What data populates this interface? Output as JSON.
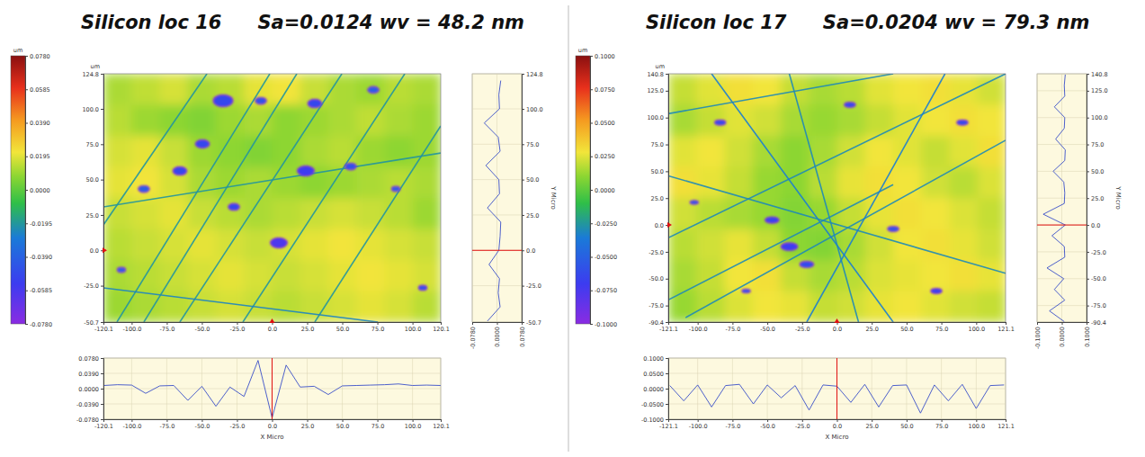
{
  "chart_data": [
    {
      "type": "heatmap",
      "title": "Silicon loc 16",
      "subtitle": "Sa=0.0124 wv = 48.2 nm",
      "x_label": "X Micro",
      "y_label": "Y Micro",
      "unit": "um",
      "xlim": [
        -120.1,
        120.1
      ],
      "xticks": [
        {
          "value": -120.1,
          "label": "-120.1"
        },
        {
          "value": -100,
          "label": "-100.0"
        },
        {
          "value": -75,
          "label": "-75.0"
        },
        {
          "value": -50,
          "label": "-50.0"
        },
        {
          "value": -25,
          "label": "-25.0"
        },
        {
          "value": 0,
          "label": "0.0"
        },
        {
          "value": 25,
          "label": "25.0"
        },
        {
          "value": 50,
          "label": "50.0"
        },
        {
          "value": 75,
          "label": "75.0"
        },
        {
          "value": 100,
          "label": "100.0"
        },
        {
          "value": 120.1,
          "label": "120.1"
        }
      ],
      "ylim": [
        -50.7,
        124.8
      ],
      "yticks": [
        {
          "value": -50.7,
          "label": "-50.7"
        },
        {
          "value": -25,
          "label": "-25.0"
        },
        {
          "value": 0,
          "label": "0.0"
        },
        {
          "value": 25,
          "label": "25.0"
        },
        {
          "value": 50,
          "label": "50.0"
        },
        {
          "value": 75,
          "label": "75.0"
        },
        {
          "value": 100,
          "label": "100.0"
        },
        {
          "value": 124.8,
          "label": "124.8"
        }
      ],
      "colorbar": {
        "range": [
          -0.078,
          0.078
        ],
        "ticks": [
          {
            "value": -0.078,
            "label": "-0.0780"
          },
          {
            "value": -0.0585,
            "label": "-0.0585"
          },
          {
            "value": -0.039,
            "label": "-0.0390"
          },
          {
            "value": -0.0195,
            "label": "-0.0195"
          },
          {
            "value": 0,
            "label": "0.0000"
          },
          {
            "value": 0.0195,
            "label": "0.0195"
          },
          {
            "value": 0.039,
            "label": "0.0390"
          },
          {
            "value": 0.0585,
            "label": "0.0585"
          },
          {
            "value": 0.078,
            "label": "0.0780"
          }
        ]
      },
      "cells": [
        [
          0.012,
          0.015,
          0.018,
          0.012,
          0.014,
          0.02,
          0.022,
          0.016,
          0.012,
          0.01,
          0.014,
          0.012
        ],
        [
          0.014,
          0.01,
          0.008,
          0.006,
          0.01,
          0.012,
          0.008,
          0.01,
          0.012,
          0.015,
          0.012,
          0.01
        ],
        [
          0.018,
          0.02,
          0.016,
          0.01,
          0.008,
          0.006,
          0.008,
          0.012,
          0.014,
          0.01,
          0.008,
          0.01
        ],
        [
          0.02,
          0.022,
          0.018,
          0.012,
          0.01,
          0.012,
          0.01,
          0.008,
          0.01,
          0.012,
          0.014,
          0.012
        ],
        [
          0.016,
          0.018,
          0.02,
          0.016,
          0.014,
          0.012,
          0.014,
          0.016,
          0.018,
          0.016,
          0.014,
          0.01
        ],
        [
          0.014,
          0.016,
          0.018,
          0.02,
          0.018,
          0.016,
          0.018,
          0.02,
          0.022,
          0.02,
          0.018,
          0.016
        ],
        [
          0.012,
          0.014,
          0.016,
          0.018,
          0.02,
          0.018,
          0.016,
          0.018,
          0.02,
          0.022,
          0.02,
          0.018
        ],
        [
          0.01,
          0.012,
          0.014,
          0.016,
          0.018,
          0.016,
          0.014,
          0.016,
          0.018,
          0.02,
          0.018,
          0.014
        ]
      ],
      "scratches": [
        {
          "x": [
            -110.5,
            -1.6
          ],
          "y": [
            -50.7,
            124.8
          ],
          "value": -0.02
        },
        {
          "x": [
            -65.7,
            49.7
          ],
          "y": [
            -50.7,
            124.8
          ],
          "value": -0.02
        },
        {
          "x": [
            -20.8,
            94.5
          ],
          "y": [
            -50.7,
            124.8
          ],
          "value": -0.02
        },
        {
          "x": [
            30.4,
            120.1
          ],
          "y": [
            -50.7,
            87.9
          ],
          "value": -0.02
        },
        {
          "x": [
            -120.1,
            -46.4
          ],
          "y": [
            17.97,
            124.8
          ],
          "value": -0.02
        },
        {
          "x": [
            -120.1,
            75.3
          ],
          "y": [
            -26.5,
            -50.7
          ],
          "value": -0.025
        },
        {
          "x": [
            -120.1,
            120.1
          ],
          "y": [
            30.7,
            68.8
          ],
          "value": -0.02
        },
        {
          "x": [
            -91.3,
            17.6
          ],
          "y": [
            -50.7,
            124.8
          ],
          "value": -0.02
        }
      ],
      "pits": [
        {
          "x": -34.9,
          "y": 105.7,
          "size": 7,
          "value": -0.05
        },
        {
          "x": -8.0,
          "y": 105.7,
          "size": 4,
          "value": -0.045
        },
        {
          "x": 30.4,
          "y": 103.8,
          "size": 5,
          "value": -0.05
        },
        {
          "x": 72.1,
          "y": 113.4,
          "size": 4,
          "value": -0.04
        },
        {
          "x": -65.7,
          "y": 56.1,
          "size": 5,
          "value": -0.05
        },
        {
          "x": 24.0,
          "y": 56.1,
          "size": 6,
          "value": -0.055
        },
        {
          "x": 56.0,
          "y": 59.3,
          "size": 4,
          "value": -0.045
        },
        {
          "x": -91.3,
          "y": 43.4,
          "size": 4,
          "value": -0.04
        },
        {
          "x": 4.8,
          "y": 5.3,
          "size": 6,
          "value": -0.06
        },
        {
          "x": 88.1,
          "y": 43.4,
          "size": 3,
          "value": -0.04
        },
        {
          "x": -107.3,
          "y": -13.8,
          "size": 3,
          "value": -0.04
        },
        {
          "x": 107.3,
          "y": -26.5,
          "size": 3,
          "value": -0.045
        },
        {
          "x": -27.2,
          "y": 30.7,
          "size": 4,
          "value": -0.05
        },
        {
          "x": -49.6,
          "y": 75.2,
          "size": 5,
          "value": -0.05
        }
      ],
      "cursor": {
        "x": 0,
        "y": 0
      },
      "x_profile": {
        "x": [
          -120,
          -110,
          -100,
          -90,
          -80,
          -70,
          -60,
          -50,
          -40,
          -30,
          -20,
          -10,
          0,
          10,
          20,
          30,
          40,
          50,
          60,
          70,
          80,
          90,
          100,
          110,
          120
        ],
        "values": [
          0.008,
          0.01,
          0.009,
          -0.012,
          0.007,
          0.008,
          -0.03,
          0.006,
          -0.045,
          0.004,
          -0.02,
          0.072,
          -0.075,
          0.06,
          0.004,
          0.006,
          -0.015,
          0.007,
          0.008,
          0.009,
          0.01,
          0.012,
          0.008,
          0.009,
          0.008
        ],
        "ylim": [
          -0.078,
          0.078
        ],
        "yticks": [
          {
            "value": -0.078,
            "label": "-0.0780"
          },
          {
            "value": -0.039,
            "label": "-0.0390"
          },
          {
            "value": 0,
            "label": "0.0000"
          },
          {
            "value": 0.039,
            "label": "0.0390"
          },
          {
            "value": 0.078,
            "label": "0.0780"
          }
        ]
      },
      "y_profile": {
        "y": [
          -50,
          -40,
          -30,
          -20,
          -10,
          0,
          10,
          20,
          30,
          40,
          50,
          60,
          70,
          80,
          90,
          100,
          110,
          120
        ],
        "values": [
          -0.03,
          0.01,
          0.004,
          0.008,
          -0.025,
          0.006,
          0.01,
          0.012,
          -0.03,
          0.008,
          0.006,
          -0.035,
          0.01,
          0.004,
          -0.04,
          0.008,
          0.006,
          0.012
        ],
        "xlim": [
          -0.078,
          0.078
        ],
        "xticks": [
          {
            "value": -0.078,
            "label": "-0.0780"
          },
          {
            "value": 0,
            "label": "0.0000"
          },
          {
            "value": 0.078,
            "label": "0.0780"
          }
        ]
      }
    },
    {
      "type": "heatmap",
      "title": "Silicon loc 17",
      "subtitle": "Sa=0.0204 wv = 79.3 nm",
      "x_label": "X Micro",
      "y_label": "Y Micro",
      "unit": "um",
      "xlim": [
        -121.1,
        121.1
      ],
      "xticks": [
        {
          "value": -121.1,
          "label": "-121.1"
        },
        {
          "value": -100,
          "label": "-100.0"
        },
        {
          "value": -75,
          "label": "-75.0"
        },
        {
          "value": -50,
          "label": "-50.0"
        },
        {
          "value": -25,
          "label": "-25.0"
        },
        {
          "value": 0,
          "label": "0.0"
        },
        {
          "value": 25,
          "label": "25.0"
        },
        {
          "value": 50,
          "label": "50.0"
        },
        {
          "value": 75,
          "label": "75.0"
        },
        {
          "value": 100,
          "label": "100.0"
        },
        {
          "value": 121.1,
          "label": "121.1"
        }
      ],
      "ylim": [
        -90.4,
        140.8
      ],
      "yticks": [
        {
          "value": -90.4,
          "label": "-90.4"
        },
        {
          "value": -75,
          "label": "-75.0"
        },
        {
          "value": -50,
          "label": "-50.0"
        },
        {
          "value": -25,
          "label": "-25.0"
        },
        {
          "value": 0,
          "label": "0.0"
        },
        {
          "value": 25,
          "label": "25.0"
        },
        {
          "value": 50,
          "label": "50.0"
        },
        {
          "value": 75,
          "label": "75.0"
        },
        {
          "value": 100,
          "label": "100.0"
        },
        {
          "value": 125,
          "label": "125.0"
        },
        {
          "value": 140.8,
          "label": "140.8"
        }
      ],
      "colorbar": {
        "range": [
          -0.1,
          0.1
        ],
        "ticks": [
          {
            "value": -0.1,
            "label": "-0.1000"
          },
          {
            "value": -0.075,
            "label": "-0.0750"
          },
          {
            "value": -0.05,
            "label": "-0.0500"
          },
          {
            "value": -0.025,
            "label": "-0.0250"
          },
          {
            "value": 0,
            "label": "0.0000"
          },
          {
            "value": 0.025,
            "label": "0.0250"
          },
          {
            "value": 0.05,
            "label": "0.0500"
          },
          {
            "value": 0.075,
            "label": "0.0750"
          },
          {
            "value": 0.1,
            "label": "0.1000"
          }
        ]
      },
      "cells": [
        [
          0.02,
          0.025,
          0.03,
          0.028,
          0.02,
          0.015,
          0.018,
          0.025,
          0.028,
          0.03,
          0.026,
          0.022
        ],
        [
          0.015,
          0.02,
          0.025,
          0.022,
          0.015,
          0.012,
          0.015,
          0.02,
          0.025,
          0.028,
          0.03,
          0.028
        ],
        [
          0.025,
          0.028,
          0.022,
          0.015,
          0.01,
          0.015,
          0.022,
          0.028,
          0.025,
          0.02,
          0.025,
          0.03
        ],
        [
          0.03,
          0.026,
          0.02,
          0.012,
          0.01,
          0.018,
          0.026,
          0.03,
          0.028,
          0.022,
          0.018,
          0.024
        ],
        [
          0.022,
          0.018,
          0.015,
          0.012,
          0.008,
          0.012,
          0.02,
          0.026,
          0.03,
          0.028,
          0.024,
          0.02
        ],
        [
          0.018,
          0.022,
          0.026,
          0.02,
          0.01,
          0.008,
          0.015,
          0.022,
          0.028,
          0.03,
          0.026,
          0.022
        ],
        [
          0.015,
          0.02,
          0.028,
          0.03,
          0.02,
          0.015,
          0.018,
          0.024,
          0.026,
          0.028,
          0.03,
          0.026
        ],
        [
          0.012,
          0.018,
          0.024,
          0.028,
          0.026,
          0.02,
          0.022,
          0.026,
          0.028,
          0.025,
          0.022,
          0.02
        ]
      ],
      "scratches": [
        {
          "x": [
            -108.7,
            121.1
          ],
          "y": [
            -86.3,
            78.9
          ],
          "value": -0.03
        },
        {
          "x": [
            -121.1,
            121.1
          ],
          "y": [
            -11.96,
            140.8
          ],
          "value": -0.03
        },
        {
          "x": [
            -90.0,
            40.4
          ],
          "y": [
            140.8,
            -90.4
          ],
          "value": -0.035
        },
        {
          "x": [
            -121.1,
            40.4
          ],
          "y": [
            -69.8,
            37.6
          ],
          "value": -0.03
        },
        {
          "x": [
            -34.2,
            15.5
          ],
          "y": [
            140.8,
            -90.4
          ],
          "value": -0.03
        },
        {
          "x": [
            -121.1,
            121.1
          ],
          "y": [
            45.8,
            -45.0
          ],
          "value": -0.03
        },
        {
          "x": [
            -21.7,
            77.6
          ],
          "y": [
            -90.4,
            140.8
          ],
          "value": -0.035
        },
        {
          "x": [
            -121.1,
            40.4
          ],
          "y": [
            103.6,
            140.8
          ],
          "value": -0.03
        }
      ],
      "pits": [
        {
          "x": -34.2,
          "y": -20.2,
          "size": 6,
          "value": -0.07
        },
        {
          "x": -46.6,
          "y": 4.6,
          "size": 5,
          "value": -0.065
        },
        {
          "x": -21.7,
          "y": -36.7,
          "size": 5,
          "value": -0.06
        },
        {
          "x": -83.8,
          "y": 95.4,
          "size": 4,
          "value": -0.06
        },
        {
          "x": 40.4,
          "y": -3.7,
          "size": 4,
          "value": -0.055
        },
        {
          "x": 90.1,
          "y": 95.4,
          "size": 4,
          "value": -0.06
        },
        {
          "x": -102.5,
          "y": 21.1,
          "size": 3,
          "value": -0.055
        },
        {
          "x": 9.3,
          "y": 111.9,
          "size": 4,
          "value": -0.06
        },
        {
          "x": 71.4,
          "y": -61.5,
          "size": 4,
          "value": -0.065
        },
        {
          "x": -65.2,
          "y": -61.5,
          "size": 3,
          "value": -0.055
        }
      ],
      "cursor": {
        "x": 0,
        "y": 0
      },
      "x_profile": {
        "x": [
          -120,
          -110,
          -100,
          -90,
          -80,
          -70,
          -60,
          -50,
          -40,
          -30,
          -20,
          -10,
          0,
          10,
          20,
          30,
          40,
          50,
          60,
          70,
          80,
          90,
          100,
          110,
          120
        ],
        "values": [
          0.01,
          -0.04,
          0.012,
          -0.06,
          0.01,
          0.014,
          -0.05,
          0.012,
          -0.03,
          0.01,
          -0.07,
          0.012,
          0.008,
          -0.045,
          0.014,
          -0.06,
          0.01,
          0.012,
          -0.08,
          0.012,
          -0.04,
          0.014,
          -0.065,
          0.01,
          0.012
        ],
        "ylim": [
          -0.1,
          0.1
        ],
        "yticks": [
          {
            "value": -0.1,
            "label": "-0.1000"
          },
          {
            "value": -0.05,
            "label": "-0.0500"
          },
          {
            "value": 0,
            "label": "0.0000"
          },
          {
            "value": 0.05,
            "label": "0.0500"
          },
          {
            "value": 0.1,
            "label": "0.1000"
          }
        ]
      },
      "y_profile": {
        "y": [
          -90,
          -80,
          -70,
          -60,
          -50,
          -40,
          -30,
          -20,
          -10,
          0,
          10,
          20,
          30,
          40,
          50,
          60,
          70,
          80,
          90,
          100,
          110,
          120,
          130,
          140
        ],
        "values": [
          0.01,
          -0.05,
          0.012,
          -0.03,
          0.008,
          -0.06,
          0.012,
          0.01,
          -0.04,
          0.014,
          -0.075,
          0.01,
          0.012,
          0.008,
          -0.035,
          0.012,
          0.014,
          -0.025,
          0.01,
          0.012,
          -0.03,
          0.012,
          0.01,
          0.014
        ],
        "xlim": [
          -0.1,
          0.1
        ],
        "xticks": [
          {
            "value": -0.1,
            "label": "-0.1000"
          },
          {
            "value": 0,
            "label": "0.0000"
          },
          {
            "value": 0.1,
            "label": "0.1000"
          }
        ]
      }
    }
  ]
}
